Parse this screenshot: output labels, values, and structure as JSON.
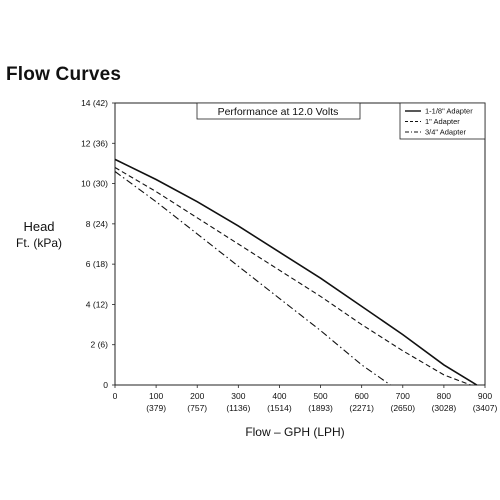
{
  "chart_data": {
    "type": "line",
    "title": "Flow Curves",
    "annotation": "Performance at 12.0 Volts",
    "ylabel_line1": "Head",
    "ylabel_line2": "Ft. (kPa)",
    "xlabel": "Flow – GPH (LPH)",
    "xlim": [
      0,
      900
    ],
    "ylim": [
      0,
      14
    ],
    "grid": false,
    "legend_position": "top-right",
    "x_ticks": [
      {
        "value": 0,
        "label": "0",
        "sub": ""
      },
      {
        "value": 100,
        "label": "100",
        "sub": "(379)"
      },
      {
        "value": 200,
        "label": "200",
        "sub": "(757)"
      },
      {
        "value": 300,
        "label": "300",
        "sub": "(1136)"
      },
      {
        "value": 400,
        "label": "400",
        "sub": "(1514)"
      },
      {
        "value": 500,
        "label": "500",
        "sub": "(1893)"
      },
      {
        "value": 600,
        "label": "600",
        "sub": "(2271)"
      },
      {
        "value": 700,
        "label": "700",
        "sub": "(2650)"
      },
      {
        "value": 800,
        "label": "800",
        "sub": "(3028)"
      },
      {
        "value": 900,
        "label": "900",
        "sub": "(3407)"
      }
    ],
    "y_ticks": [
      {
        "value": 0,
        "label": "0"
      },
      {
        "value": 2,
        "label": "2 (6)"
      },
      {
        "value": 4,
        "label": "4 (12)"
      },
      {
        "value": 6,
        "label": "6 (18)"
      },
      {
        "value": 8,
        "label": "8 (24)"
      },
      {
        "value": 10,
        "label": "10 (30)"
      },
      {
        "value": 12,
        "label": "12 (36)"
      },
      {
        "value": 14,
        "label": "14 (42)"
      }
    ],
    "series": [
      {
        "name": "1-1/8\" Adapter",
        "style": "solid",
        "x": [
          0,
          100,
          200,
          300,
          400,
          500,
          600,
          700,
          800,
          880
        ],
        "y": [
          11.2,
          10.2,
          9.1,
          7.9,
          6.6,
          5.3,
          3.9,
          2.5,
          1.0,
          0
        ]
      },
      {
        "name": "1\" Adapter",
        "style": "dashed",
        "x": [
          0,
          100,
          200,
          300,
          400,
          500,
          600,
          700,
          800,
          865
        ],
        "y": [
          10.8,
          9.6,
          8.3,
          7.0,
          5.7,
          4.4,
          3.0,
          1.7,
          0.5,
          0
        ]
      },
      {
        "name": "3/4\" Adapter",
        "style": "dashdot",
        "x": [
          0,
          100,
          200,
          300,
          400,
          500,
          600,
          670
        ],
        "y": [
          10.6,
          9.1,
          7.5,
          5.9,
          4.3,
          2.7,
          1.0,
          0
        ]
      }
    ]
  }
}
